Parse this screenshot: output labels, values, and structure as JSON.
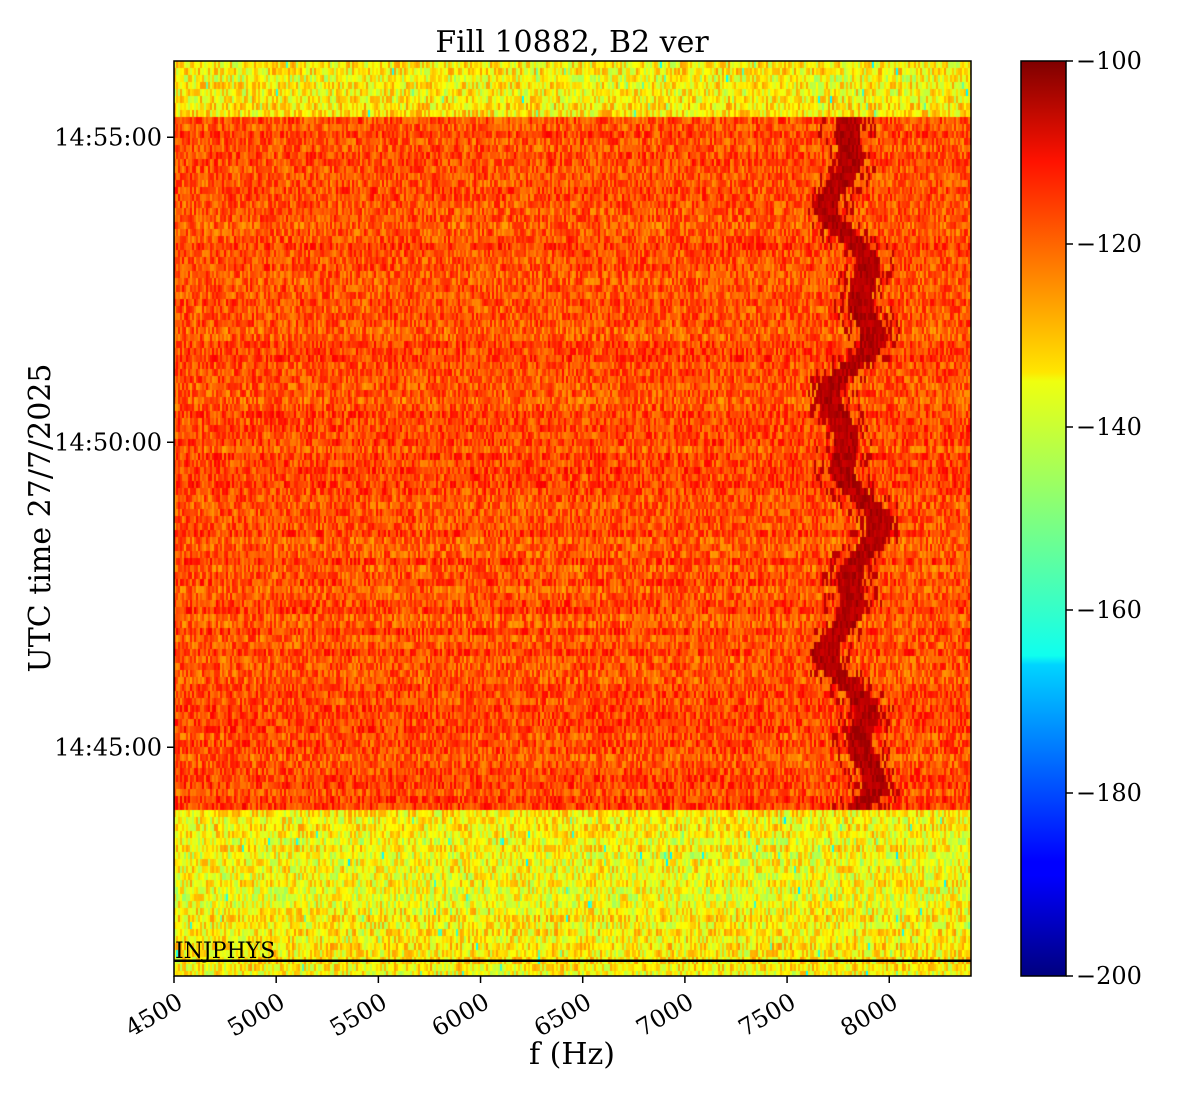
{
  "chart_data": {
    "type": "heatmap",
    "title": "Fill 10882, B2 ver",
    "xlabel": "f (Hz)",
    "ylabel": "UTC time 27/7/2025",
    "xlim": [
      4500,
      8400
    ],
    "x_ticks": [
      4500,
      5000,
      5500,
      6000,
      6500,
      7000,
      7500,
      8000
    ],
    "x_tick_labels": [
      "4500",
      "5000",
      "5500",
      "6000",
      "6500",
      "7000",
      "7500",
      "8000"
    ],
    "ylim": [
      "14:41:15",
      "14:56:15"
    ],
    "y_ticks": [
      "14:45:00",
      "14:50:00",
      "14:55:00"
    ],
    "y_tick_labels": [
      "14:45:00",
      "14:50:00",
      "14:55:00"
    ],
    "colorbar": {
      "colormap": "jet",
      "range": [
        -200,
        -100
      ],
      "ticks": [
        -100,
        -120,
        -140,
        -160,
        -180,
        -200
      ],
      "tick_labels": [
        "−100",
        "−120",
        "−140",
        "−160",
        "−180",
        "−200"
      ]
    },
    "regions": [
      {
        "time_start": "14:41:15",
        "time_end": "14:43:55",
        "level_db": -137
      },
      {
        "time_start": "14:43:55",
        "time_end": "14:55:20",
        "level_db": -120
      },
      {
        "time_start": "14:55:20",
        "time_end": "14:56:15",
        "level_db": -137
      }
    ],
    "tune_line": {
      "freq_hz_min": 7600,
      "freq_hz_max": 8050,
      "level_db": -102,
      "time_start": "14:43:55",
      "time_end": "14:55:20"
    },
    "annotations": [
      {
        "text": "INJPHYS",
        "time": "14:41:30",
        "freq_hz": 4500
      }
    ]
  }
}
